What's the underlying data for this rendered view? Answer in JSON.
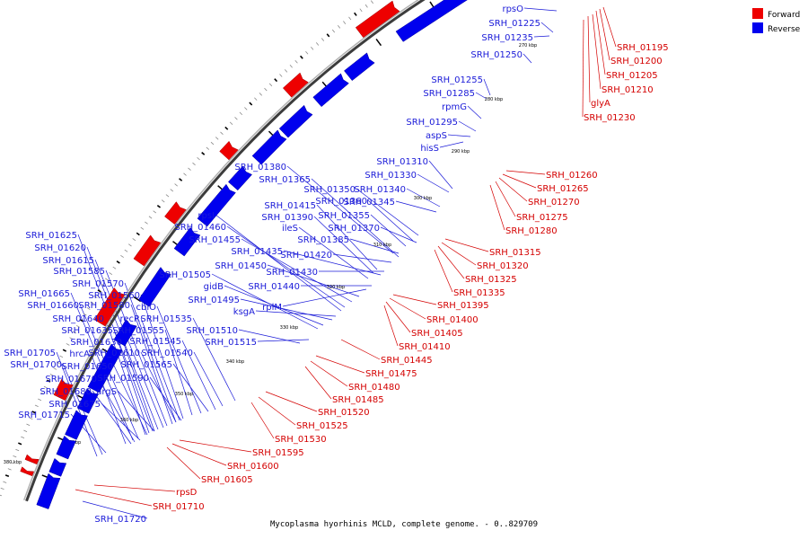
{
  "caption": "Mycoplasma hyorhinis MCLD, complete genome. - 0..829709",
  "legend": [
    {
      "label": "Forward",
      "color": "#ee0000"
    },
    {
      "label": "Reverse",
      "color": "#0000ee"
    }
  ],
  "colors": {
    "forward_label": "#d40000",
    "reverse_label": "#1a1ad8",
    "backbone": "#777777"
  },
  "ticks": [
    "270 kbp",
    "280 kbp",
    "290 kbp",
    "300 kbp",
    "310 kbp",
    "320 kbp",
    "330 kbp",
    "340 kbp",
    "350 kbp",
    "360 kbp",
    "370 kbp",
    "380 kbp"
  ],
  "forward_labels": [
    "SRH_01195",
    "SRH_01200",
    "SRH_01205",
    "SRH_01210",
    "glyA",
    "SRH_01230",
    "SRH_01260",
    "SRH_01265",
    "SRH_01270",
    "SRH_01275",
    "SRH_01280",
    "SRH_01315",
    "SRH_01320",
    "SRH_01325",
    "SRH_01335",
    "SRH_01395",
    "SRH_01400",
    "SRH_01405",
    "SRH_01410",
    "SRH_01445",
    "SRH_01475",
    "SRH_01480",
    "SRH_01485",
    "SRH_01520",
    "SRH_01525",
    "SRH_01530",
    "SRH_01595",
    "SRH_01600",
    "SRH_01605",
    "rpsD",
    "SRH_01710"
  ],
  "reverse_labels": [
    "rpsO",
    "SRH_01225",
    "SRH_01235",
    "SRH_01250",
    "SRH_01255",
    "SRH_01285",
    "rpmG",
    "SRH_01295",
    "aspS",
    "hisS",
    "SRH_01310",
    "SRH_01330",
    "SRH_01380",
    "SRH_01365",
    "SRH_01350",
    "SRH_01340",
    "SRH_01360",
    "SRH_01345",
    "SRH_01415",
    "SRH_01390",
    "SRH_01355",
    "rpsI",
    "ileS",
    "SRH_01370",
    "SRH_01460",
    "SRH_01385",
    "SRH_01455",
    "SRH_01435",
    "SRH_01420",
    "SRH_01450",
    "SRH_01430",
    "SRH_01505",
    "gidB",
    "SRH_01440",
    "SRH_01495",
    "rplM",
    "SRH_01625",
    "ksgA",
    "SRH_01620",
    "SRH_01615",
    "SRH_01585",
    "SRH_01570",
    "SRH_01665",
    "SRH_01560",
    "SRH_01660",
    "SRH_01580",
    "cbiO",
    "SRH_01640",
    "recR",
    "SRH_01535",
    "SRH_01635",
    "SRH_01555",
    "SRH_01510",
    "SRH_01630",
    "SRH_01545",
    "SRH_01515",
    "hrcA",
    "SRH_01610",
    "SRH_01540",
    "SRH_01705",
    "SRH_01650",
    "SRH_01565",
    "SRH_01700",
    "SRH_01590",
    "SRH_01670",
    "SRH_01680",
    "argS",
    "SRH_01675",
    "SRH_01715",
    "SRH_01720"
  ]
}
